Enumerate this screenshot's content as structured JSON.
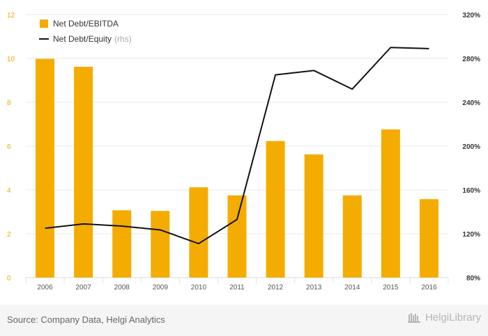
{
  "chart_data": {
    "type": "bar+line",
    "categories": [
      "2006",
      "2007",
      "2008",
      "2009",
      "2010",
      "2011",
      "2012",
      "2013",
      "2014",
      "2015",
      "2016"
    ],
    "series": [
      {
        "name": "Net Debt/EBITDA",
        "type": "bar",
        "axis": "left",
        "values": [
          9.98,
          9.62,
          3.07,
          3.04,
          4.12,
          3.75,
          6.23,
          5.62,
          3.75,
          6.76,
          3.58
        ],
        "color": "#f5ac00"
      },
      {
        "name": "Net Debt/Equity",
        "legend_suffix": "(rhs)",
        "type": "line",
        "axis": "right",
        "values": [
          125,
          129,
          127,
          123.5,
          111,
          133,
          265,
          269,
          252,
          290,
          289
        ],
        "color": "#111111"
      }
    ],
    "y_left": {
      "ylim": [
        0,
        12
      ],
      "ticks": [
        "0",
        "2",
        "4",
        "6",
        "8",
        "10",
        "12"
      ]
    },
    "y_right": {
      "ylim": [
        80,
        320
      ],
      "ticks": [
        "80%",
        "120%",
        "160%",
        "200%",
        "240%",
        "280%",
        "320%"
      ]
    },
    "grid": true,
    "legend_position": "top-left"
  },
  "footer": {
    "source": "Source: Company Data, Helgi Analytics",
    "brand": "HelgiLibrary"
  }
}
